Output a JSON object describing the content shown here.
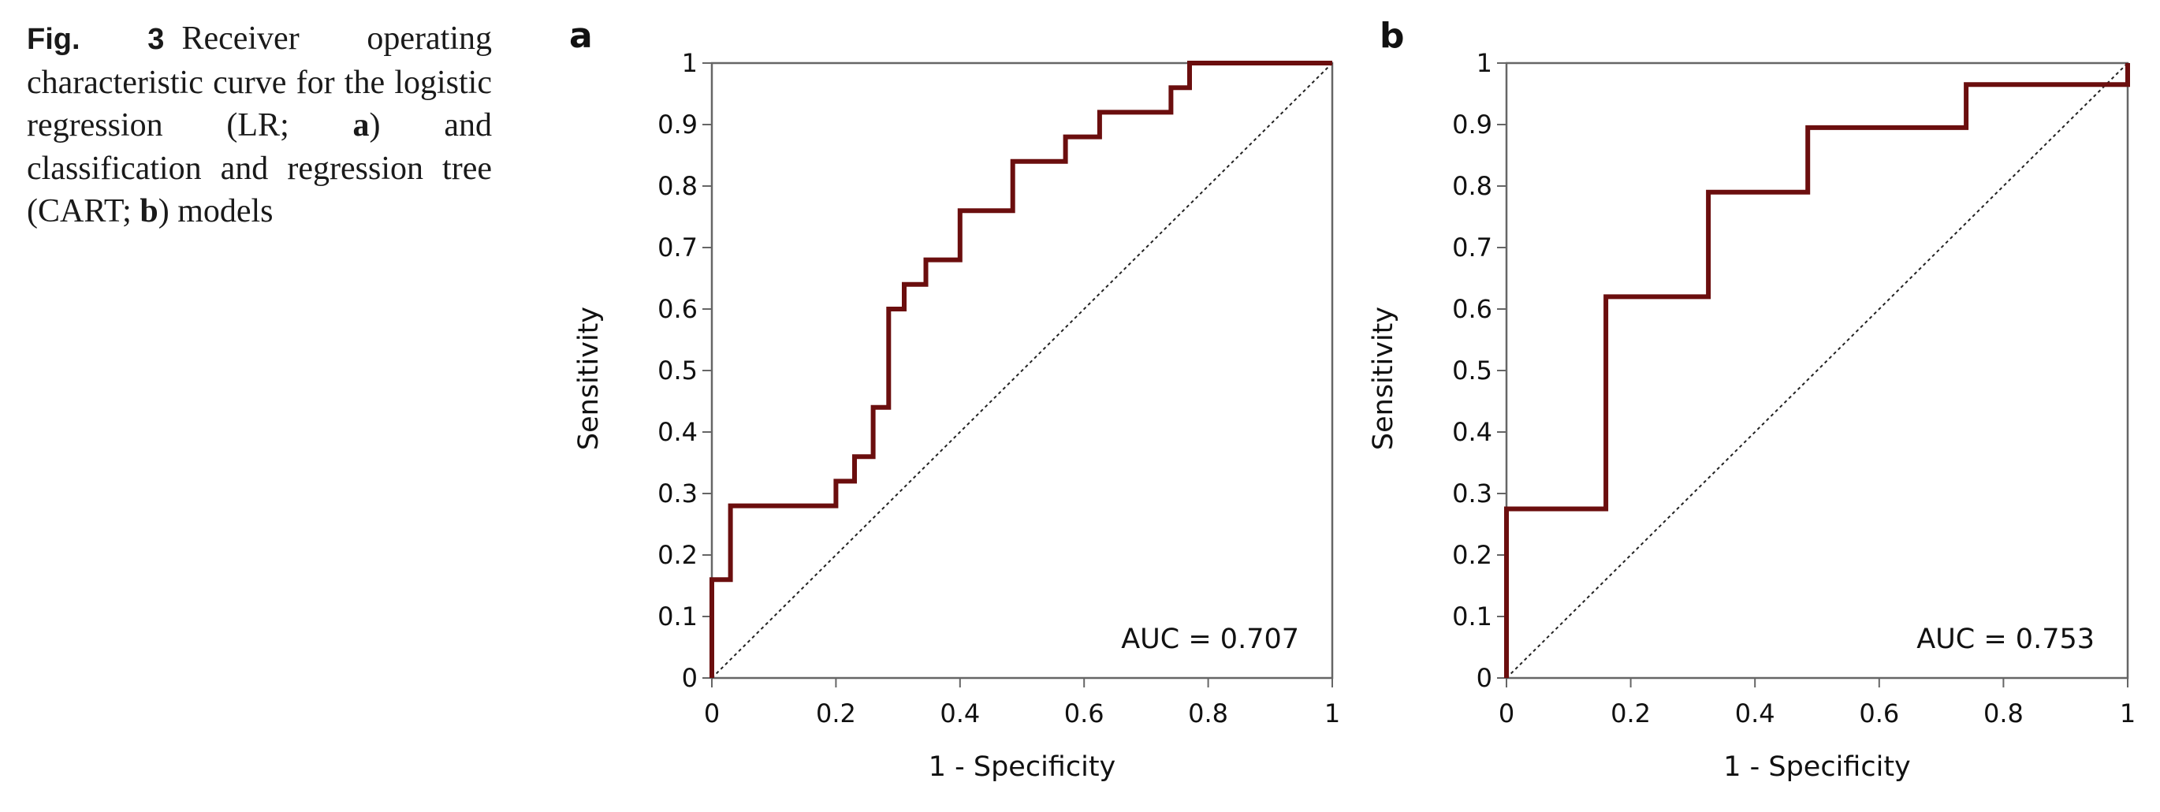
{
  "caption": {
    "label": "Fig. 3",
    "parts": [
      {
        "text": "Receiver operating characteristic curve for the logistic regression (LR; ",
        "bold": false
      },
      {
        "text": "a",
        "bold": true
      },
      {
        "text": ") and classification and regression tree (CART; ",
        "bold": false
      },
      {
        "text": "b",
        "bold": true
      },
      {
        "text": ") models",
        "bold": false
      }
    ]
  },
  "colors": {
    "curve": "#6b0e0e",
    "diagonal": "#222222",
    "frame": "#666666"
  },
  "chart_data": [
    {
      "panel": "a",
      "type": "line",
      "title": "",
      "xlabel": "1 - Specificity",
      "ylabel": "Sensitivity",
      "xlim": [
        0,
        1
      ],
      "ylim": [
        0,
        1
      ],
      "x_ticks": [
        "0",
        "0.2",
        "0.4",
        "0.6",
        "0.8",
        "1"
      ],
      "y_ticks": [
        "0",
        "0.1",
        "0.2",
        "0.3",
        "0.4",
        "0.5",
        "0.6",
        "0.7",
        "0.8",
        "0.9",
        "1"
      ],
      "annotation": "AUC = 0.707",
      "reference_line": [
        [
          0,
          0
        ],
        [
          1,
          1
        ]
      ],
      "series": [
        {
          "name": "LR",
          "x": [
            0,
            0,
            0.03,
            0.03,
            0.2,
            0.2,
            0.23,
            0.23,
            0.26,
            0.26,
            0.285,
            0.285,
            0.31,
            0.31,
            0.345,
            0.345,
            0.4,
            0.4,
            0.485,
            0.485,
            0.57,
            0.57,
            0.625,
            0.625,
            0.74,
            0.74,
            0.77,
            0.77,
            1
          ],
          "y": [
            0,
            0.16,
            0.16,
            0.28,
            0.28,
            0.32,
            0.32,
            0.36,
            0.36,
            0.44,
            0.44,
            0.6,
            0.6,
            0.64,
            0.64,
            0.68,
            0.68,
            0.76,
            0.76,
            0.84,
            0.84,
            0.88,
            0.88,
            0.92,
            0.92,
            0.96,
            0.96,
            1,
            1
          ]
        }
      ]
    },
    {
      "panel": "b",
      "type": "line",
      "title": "",
      "xlabel": "1 - Specificity",
      "ylabel": "Sensitivity",
      "xlim": [
        0,
        1
      ],
      "ylim": [
        0,
        1
      ],
      "x_ticks": [
        "0",
        "0.2",
        "0.4",
        "0.6",
        "0.8",
        "1"
      ],
      "y_ticks": [
        "0",
        "0.1",
        "0.2",
        "0.3",
        "0.4",
        "0.5",
        "0.6",
        "0.7",
        "0.8",
        "0.9",
        "1"
      ],
      "annotation": "AUC = 0.753",
      "reference_line": [
        [
          0,
          0
        ],
        [
          1,
          1
        ]
      ],
      "series": [
        {
          "name": "CART",
          "x": [
            0,
            0,
            0.16,
            0.16,
            0.325,
            0.325,
            0.485,
            0.485,
            0.74,
            0.74,
            1,
            1
          ],
          "y": [
            0,
            0.275,
            0.275,
            0.62,
            0.62,
            0.79,
            0.79,
            0.895,
            0.895,
            0.965,
            0.965,
            1
          ]
        }
      ]
    }
  ]
}
